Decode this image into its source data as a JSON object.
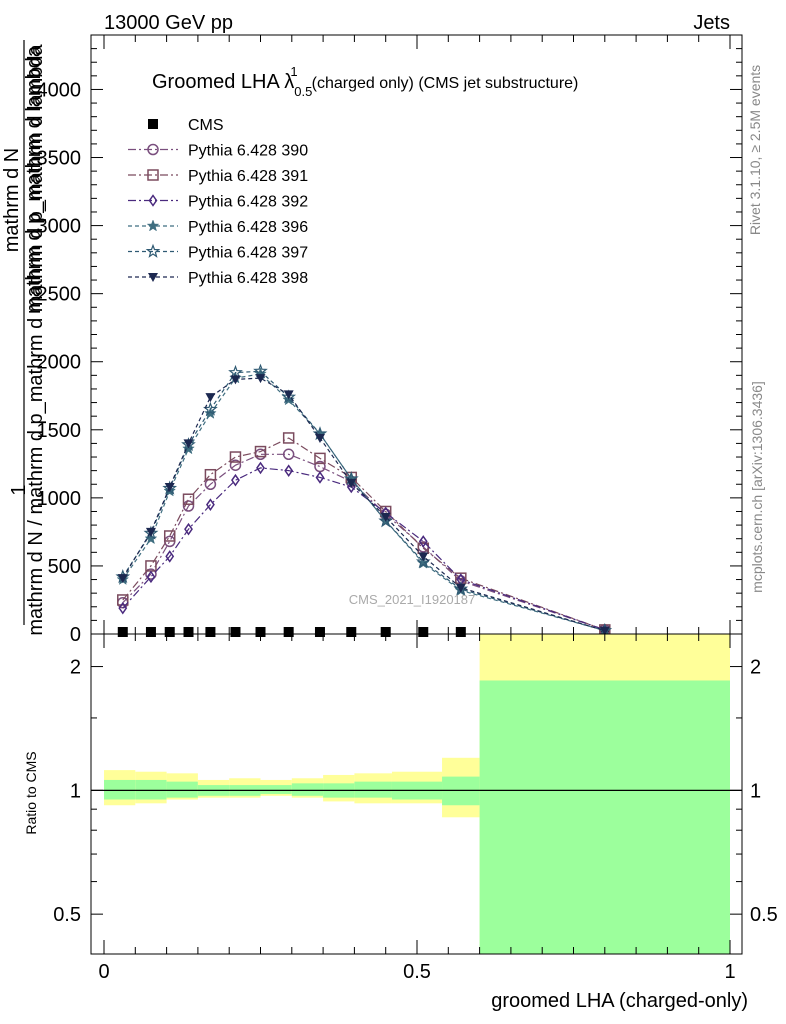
{
  "header": {
    "left": "13000 GeV pp",
    "right": "Jets"
  },
  "side_text": {
    "rivet": "Rivet 3.1.10, ≥ 2.5M events",
    "mcplots": "mcplots.cern.ch [arXiv:1306.3436]"
  },
  "watermark": "CMS_2021_I1920187",
  "colors": {
    "cms": "#000000",
    "p390": "#7a4f7e",
    "p391": "#7b4b5e",
    "p392": "#4a2a7e",
    "p396": "#3f6e80",
    "p397": "#2f5a73",
    "p398": "#1c2850",
    "band_stat": "#9cff9c",
    "band_total": "#ffff99"
  },
  "chart_data": [
    {
      "type": "line",
      "title": "Groomed LHA λ",
      "title_sup": "1",
      "title_sub": "0.5",
      "title_suffix": "(charged only) (CMS jet substructure)",
      "ylabel_main": "1",
      "ylabel_num": "mathrm d N",
      "ylabel_num2": "mathrm d p_mathrm d lambda",
      "ylabel_den": "mathrm d N / mathrm d p_mathrm d mathrm d p_mathrm d lambda",
      "xlim": [
        0,
        1
      ],
      "ylim": [
        0,
        4400
      ],
      "yticks": [
        0,
        500,
        1000,
        1500,
        2000,
        2500,
        3000,
        3500,
        4000
      ],
      "ytick_labels": [
        "0",
        "500",
        "1000",
        "1500",
        "2000",
        "2500",
        "3000",
        "3500",
        "4000"
      ],
      "legend": "top-left",
      "series": [
        {
          "key": "cms",
          "name": "CMS",
          "marker": "square-filled",
          "x": [
            0.03,
            0.075,
            0.105,
            0.135,
            0.17,
            0.21,
            0.25,
            0.295,
            0.345,
            0.395,
            0.45,
            0.51,
            0.57,
            0.8
          ],
          "y": [
            0,
            0,
            0,
            0,
            0,
            0,
            0,
            0,
            0,
            0,
            0,
            0,
            0,
            0
          ]
        },
        {
          "key": "p390",
          "name": "Pythia 6.428 390",
          "marker": "circle-open",
          "dash": "8,3,2,3",
          "x": [
            0.03,
            0.075,
            0.105,
            0.135,
            0.17,
            0.21,
            0.25,
            0.295,
            0.345,
            0.395,
            0.45,
            0.51,
            0.57,
            0.8
          ],
          "y": [
            230,
            440,
            680,
            940,
            1100,
            1240,
            1320,
            1320,
            1230,
            1120,
            880,
            640,
            390,
            30
          ]
        },
        {
          "key": "p391",
          "name": "Pythia 6.428 391",
          "marker": "square-open",
          "dash": "8,3,2,3",
          "x": [
            0.03,
            0.075,
            0.105,
            0.135,
            0.17,
            0.21,
            0.25,
            0.295,
            0.345,
            0.395,
            0.45,
            0.51,
            0.57,
            0.8
          ],
          "y": [
            250,
            500,
            720,
            990,
            1170,
            1300,
            1340,
            1440,
            1290,
            1150,
            900,
            630,
            410,
            30
          ]
        },
        {
          "key": "p392",
          "name": "Pythia 6.428 392",
          "marker": "diamond-open",
          "dash": "8,3,2,3",
          "x": [
            0.03,
            0.075,
            0.105,
            0.135,
            0.17,
            0.21,
            0.25,
            0.295,
            0.345,
            0.395,
            0.45,
            0.51,
            0.57,
            0.8
          ],
          "y": [
            190,
            420,
            570,
            770,
            950,
            1130,
            1220,
            1200,
            1150,
            1080,
            890,
            680,
            400,
            30
          ]
        },
        {
          "key": "p396",
          "name": "Pythia 6.428 396",
          "marker": "star-filled",
          "dash": "4,3",
          "x": [
            0.03,
            0.075,
            0.105,
            0.135,
            0.17,
            0.21,
            0.25,
            0.295,
            0.345,
            0.395,
            0.45,
            0.51,
            0.57,
            0.8
          ],
          "y": [
            400,
            700,
            1050,
            1360,
            1620,
            1880,
            1910,
            1720,
            1470,
            1140,
            830,
            520,
            320,
            25
          ]
        },
        {
          "key": "p397",
          "name": "Pythia 6.428 397",
          "marker": "star-open",
          "dash": "4,3",
          "x": [
            0.03,
            0.075,
            0.105,
            0.135,
            0.17,
            0.21,
            0.25,
            0.295,
            0.345,
            0.395,
            0.45,
            0.51,
            0.57,
            0.8
          ],
          "y": [
            420,
            740,
            1070,
            1390,
            1650,
            1920,
            1930,
            1740,
            1470,
            1140,
            830,
            530,
            330,
            25
          ]
        },
        {
          "key": "p398",
          "name": "Pythia 6.428 398",
          "marker": "triangle-down-filled",
          "dash": "4,3",
          "x": [
            0.03,
            0.075,
            0.105,
            0.135,
            0.17,
            0.21,
            0.25,
            0.295,
            0.345,
            0.395,
            0.45,
            0.51,
            0.57,
            0.8
          ],
          "y": [
            410,
            750,
            1080,
            1400,
            1740,
            1870,
            1880,
            1760,
            1440,
            1110,
            860,
            570,
            340,
            25
          ]
        }
      ]
    },
    {
      "type": "area",
      "ylabel": "Ratio to CMS",
      "xlabel": "groomed LHA (charged-only)",
      "xlim": [
        0,
        1
      ],
      "ylim": [
        0.4,
        2.4
      ],
      "scale": "log",
      "xticks": [
        0,
        0.5,
        1
      ],
      "xtick_labels": [
        "0",
        "0.5",
        "1"
      ],
      "yticks": [
        0.5,
        1,
        2
      ],
      "ytick_labels": [
        "0.5",
        "1",
        "2"
      ],
      "reference_line": 1,
      "bins": [
        {
          "x0": 0.0,
          "x1": 0.05,
          "stat": [
            0.95,
            1.06
          ],
          "total": [
            0.92,
            1.12
          ]
        },
        {
          "x0": 0.05,
          "x1": 0.1,
          "stat": [
            0.95,
            1.06
          ],
          "total": [
            0.93,
            1.11
          ]
        },
        {
          "x0": 0.1,
          "x1": 0.15,
          "stat": [
            0.96,
            1.05
          ],
          "total": [
            0.95,
            1.1
          ]
        },
        {
          "x0": 0.15,
          "x1": 0.2,
          "stat": [
            0.97,
            1.03
          ],
          "total": [
            0.96,
            1.06
          ]
        },
        {
          "x0": 0.2,
          "x1": 0.25,
          "stat": [
            0.97,
            1.03
          ],
          "total": [
            0.96,
            1.07
          ]
        },
        {
          "x0": 0.25,
          "x1": 0.3,
          "stat": [
            0.98,
            1.03
          ],
          "total": [
            0.97,
            1.06
          ]
        },
        {
          "x0": 0.3,
          "x1": 0.35,
          "stat": [
            0.97,
            1.04
          ],
          "total": [
            0.96,
            1.07
          ]
        },
        {
          "x0": 0.35,
          "x1": 0.4,
          "stat": [
            0.96,
            1.04
          ],
          "total": [
            0.94,
            1.09
          ]
        },
        {
          "x0": 0.4,
          "x1": 0.46,
          "stat": [
            0.96,
            1.05
          ],
          "total": [
            0.93,
            1.1
          ]
        },
        {
          "x0": 0.46,
          "x1": 0.54,
          "stat": [
            0.95,
            1.05
          ],
          "total": [
            0.93,
            1.11
          ]
        },
        {
          "x0": 0.54,
          "x1": 0.6,
          "stat": [
            0.92,
            1.08
          ],
          "total": [
            0.86,
            1.2
          ]
        },
        {
          "x0": 0.6,
          "x1": 1.0,
          "stat": [
            0.4,
            1.85
          ],
          "total": [
            0.4,
            2.4
          ]
        }
      ]
    }
  ]
}
